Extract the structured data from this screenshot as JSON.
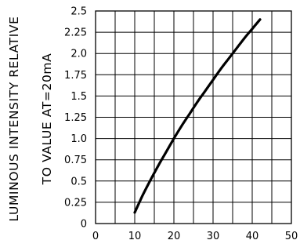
{
  "chart_data": {
    "type": "line",
    "title": "",
    "xlabel": "",
    "ylabel_lines": [
      "LUMINOUS INTENSITY RELATIVE",
      "TO VALUE AT=20mA"
    ],
    "xlim": [
      0,
      50
    ],
    "ylim": [
      0,
      2.5
    ],
    "x_ticks": [
      "0",
      "10",
      "20",
      "30",
      "40",
      "50"
    ],
    "y_ticks": [
      "0",
      "0.25",
      "0.5",
      "0.75",
      "1.0",
      "1.25",
      "1.5",
      "1.75",
      "2.0",
      "2.25",
      "2.5"
    ],
    "grid": true,
    "series": [
      {
        "x": [
          10,
          12,
          14,
          16,
          18,
          20,
          22,
          24,
          26,
          28,
          30,
          32,
          34,
          36,
          38,
          40,
          42
        ],
        "y": [
          0.13,
          0.33,
          0.51,
          0.68,
          0.84,
          1.0,
          1.15,
          1.29,
          1.43,
          1.56,
          1.69,
          1.82,
          1.94,
          2.06,
          2.18,
          2.29,
          2.4
        ]
      }
    ]
  }
}
